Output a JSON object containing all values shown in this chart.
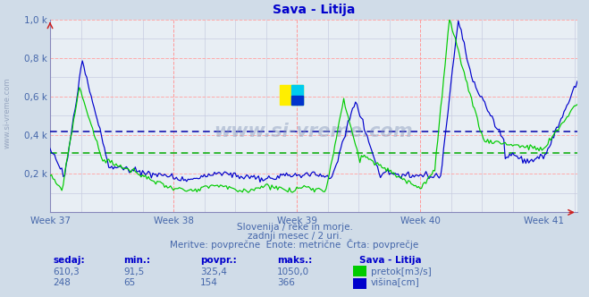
{
  "title": "Sava - Litija",
  "subtitle1": "Slovenija / reke in morje.",
  "subtitle2": "zadnji mesec / 2 uri.",
  "subtitle3": "Meritve: povprečne  Enote: metrične  Črta: povprečje",
  "xlabel_weeks": [
    "Week 37",
    "Week 38",
    "Week 39",
    "Week 40",
    "Week 41"
  ],
  "week_tick_positions": [
    0,
    84,
    168,
    252,
    336
  ],
  "pretok_avg": 325.4,
  "visina_avg": 154,
  "pretok_max": 1050.0,
  "visina_max": 366,
  "pretok_min": 91.5,
  "visina_min": 65,
  "pretok_sedaj": 610.3,
  "visina_sedaj": 248,
  "pretok_color": "#00cc00",
  "visina_color": "#0000cc",
  "avg_pretok_color": "#00aa00",
  "avg_visina_color": "#0000aa",
  "bg_color": "#d0dce8",
  "plot_bg": "#e8eef4",
  "grid_color_red": "#ffaaaa",
  "grid_color_minor": "#c8cce0",
  "title_color": "#0000cc",
  "text_color": "#4466aa",
  "label_color": "#0000cc",
  "n_points": 360,
  "ylim": [
    0,
    1050
  ],
  "visina_scale": 2.868852459016393
}
